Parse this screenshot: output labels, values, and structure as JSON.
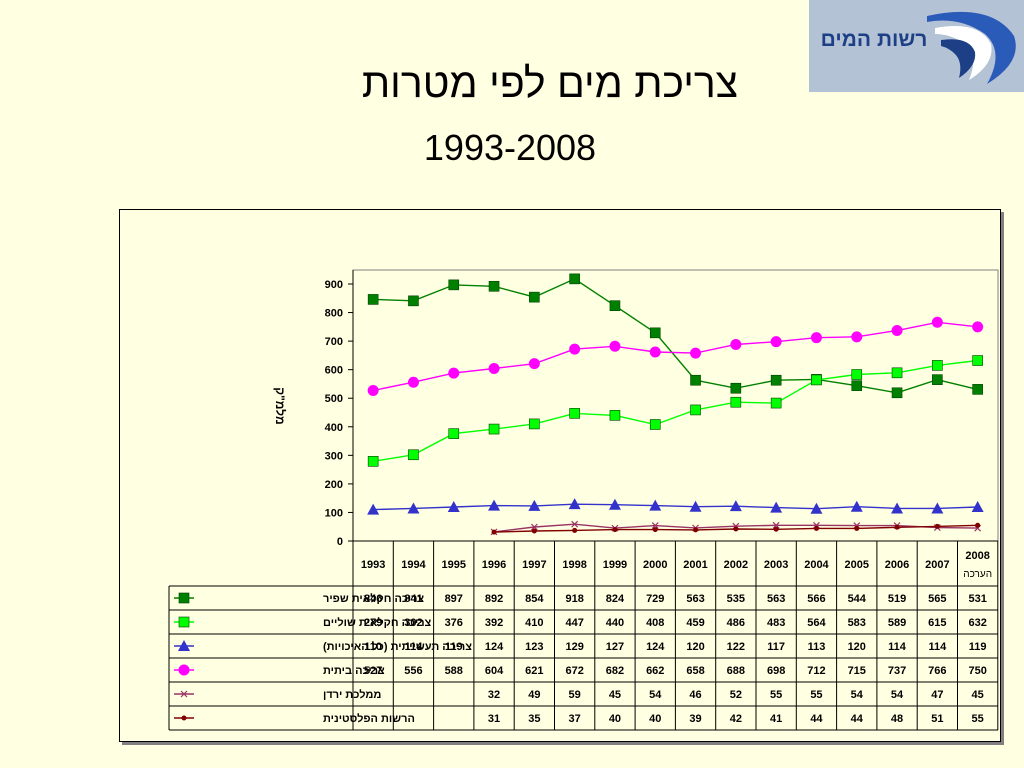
{
  "slide": {
    "title": "צריכת מים לפי מטרות",
    "subtitle": "1993-2008"
  },
  "logo": {
    "text": "רשות המים"
  },
  "chart_data": {
    "type": "line",
    "ylabel": "מלמ\"ק",
    "ylim": [
      0,
      900
    ],
    "yticks": [
      0,
      100,
      200,
      300,
      400,
      500,
      600,
      700,
      800,
      900
    ],
    "grid": false,
    "categories": [
      "1993",
      "1994",
      "1995",
      "1996",
      "1997",
      "1998",
      "1999",
      "2000",
      "2001",
      "2002",
      "2003",
      "2004",
      "2005",
      "2006",
      "2007",
      "2008"
    ],
    "category_notes": [
      "",
      "",
      "",
      "",
      "",
      "",
      "",
      "",
      "",
      "",
      "",
      "",
      "",
      "",
      "",
      "הערכה"
    ],
    "series": [
      {
        "name": "צריכה חקלאית שפיר",
        "color": "#008000",
        "marker": "square",
        "values": [
          846,
          841,
          897,
          892,
          854,
          918,
          824,
          729,
          563,
          535,
          563,
          566,
          544,
          519,
          565,
          531
        ]
      },
      {
        "name": "צריכה חקלאית שוליים",
        "color": "#00ff00",
        "marker": "square",
        "values": [
          279,
          302,
          376,
          392,
          410,
          447,
          440,
          408,
          459,
          486,
          483,
          564,
          583,
          589,
          615,
          632
        ]
      },
      {
        "name": "צריכה תעשייתית (כל האיכויות)",
        "color": "#3333cc",
        "marker": "triangle",
        "values": [
          110,
          114,
          119,
          124,
          123,
          129,
          127,
          124,
          120,
          122,
          117,
          113,
          120,
          114,
          114,
          119
        ]
      },
      {
        "name": "צריכה ביתית",
        "color": "#ff00ff",
        "marker": "circle",
        "values": [
          527,
          556,
          588,
          604,
          621,
          672,
          682,
          662,
          658,
          688,
          698,
          712,
          715,
          737,
          766,
          750
        ]
      },
      {
        "name": "ממלכת ירדן",
        "color": "#993366",
        "marker": "x",
        "values": [
          null,
          null,
          null,
          32,
          49,
          59,
          45,
          54,
          46,
          52,
          55,
          55,
          54,
          54,
          47,
          45
        ]
      },
      {
        "name": "הרשות הפלסטינית",
        "color": "#800000",
        "marker": "dot",
        "values": [
          null,
          null,
          null,
          31,
          35,
          37,
          40,
          40,
          39,
          42,
          41,
          44,
          44,
          48,
          51,
          55
        ]
      }
    ]
  }
}
